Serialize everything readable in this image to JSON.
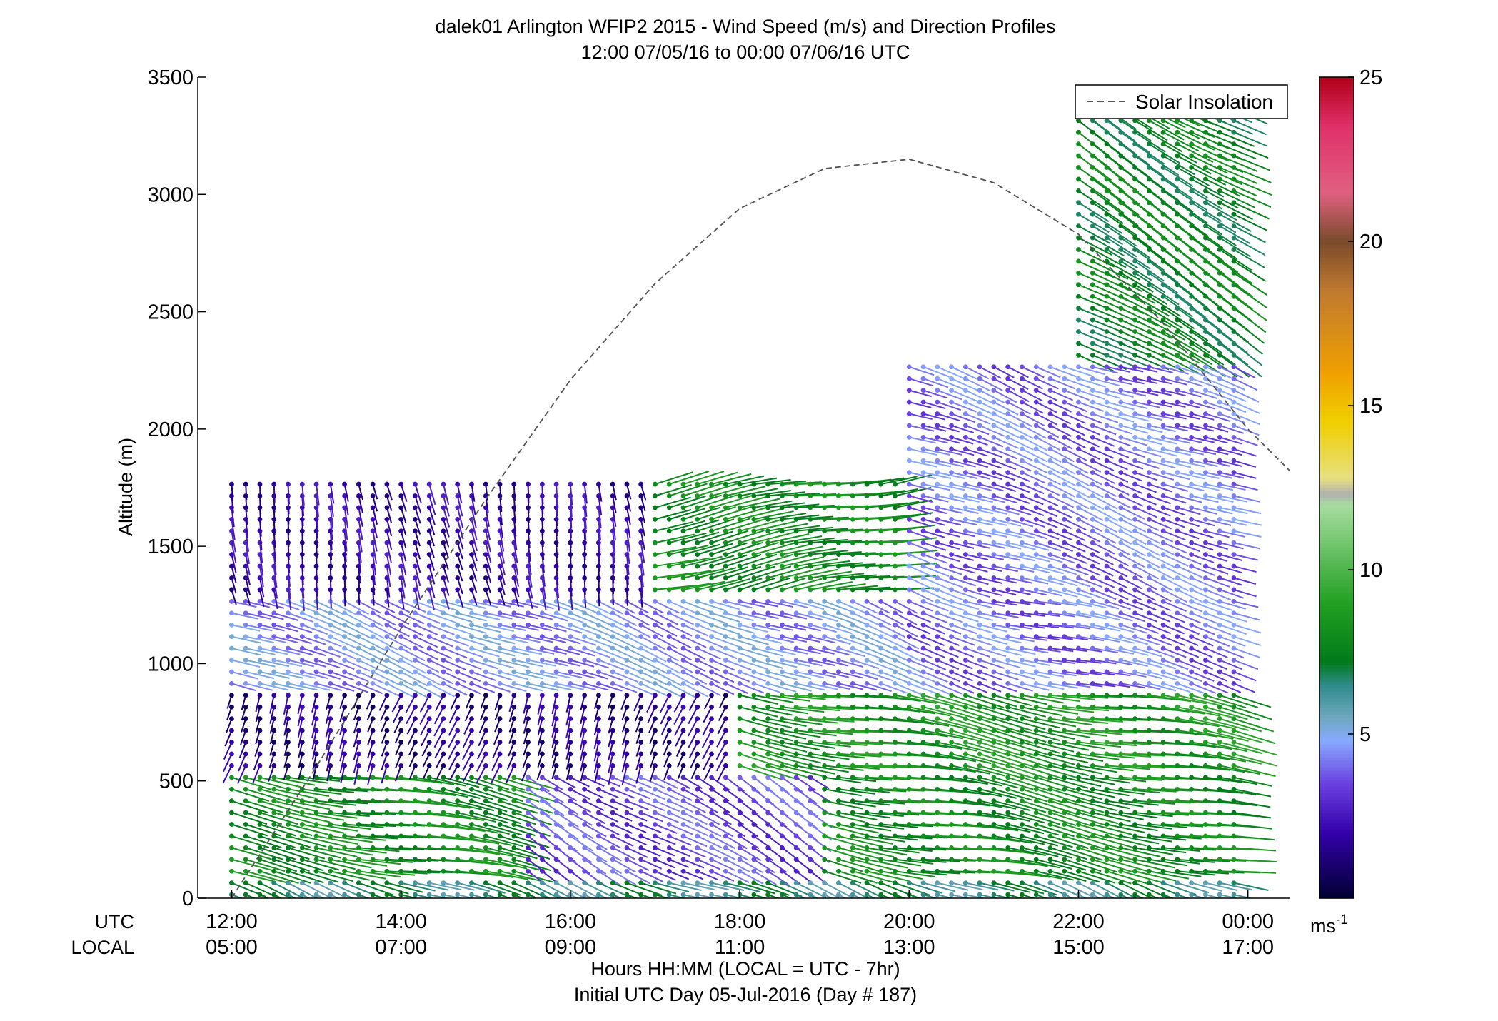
{
  "chart_data": {
    "type": "scatter",
    "title": "dalek01 Arlington WFIP2 2015 - Wind Speed (m/s) and Direction Profiles",
    "subtitle": "12:00 07/05/16 to 00:00 07/06/16  UTC",
    "ylabel": "Altitude (m)",
    "xlabel": "Hours HH:MM  (LOCAL = UTC - 7hr)",
    "xlabel2": "Initial UTC Day 05-Jul-2016 (Day # 187)",
    "xrow_utc_label": "UTC",
    "xrow_local_label": "LOCAL",
    "xlim_hours_utc": [
      11.6,
      24.5
    ],
    "ylim": [
      0,
      3500
    ],
    "yticks": [
      0,
      500,
      1000,
      1500,
      2000,
      2500,
      3000,
      3500
    ],
    "xtick_hours": [
      12,
      14,
      16,
      18,
      20,
      22,
      24
    ],
    "xticks_utc": [
      "12:00",
      "14:00",
      "16:00",
      "18:00",
      "20:00",
      "22:00",
      "00:00"
    ],
    "xticks_local": [
      "05:00",
      "07:00",
      "09:00",
      "11:00",
      "13:00",
      "15:00",
      "17:00"
    ],
    "grid": false,
    "legend": {
      "label": "Solar Insolation",
      "placement": "top-right",
      "style": "dashed gray line"
    },
    "colorbar": {
      "range": [
        0,
        25
      ],
      "ticks": [
        5,
        10,
        15,
        20,
        25
      ],
      "unit_label": "ms",
      "unit_exponent": "-1",
      "colormap_stops": [
        {
          "v": 0,
          "color": "#000033"
        },
        {
          "v": 2,
          "color": "#3300aa"
        },
        {
          "v": 3.5,
          "color": "#6a40e0"
        },
        {
          "v": 4.8,
          "color": "#88aaff"
        },
        {
          "v": 5.5,
          "color": "#6fa8c0"
        },
        {
          "v": 6.5,
          "color": "#2e8b8b"
        },
        {
          "v": 7.2,
          "color": "#007a1a"
        },
        {
          "v": 9,
          "color": "#22a022"
        },
        {
          "v": 12,
          "color": "#a8dda0"
        },
        {
          "v": 12.3,
          "color": "#b0b0b0"
        },
        {
          "v": 12.8,
          "color": "#e8e080"
        },
        {
          "v": 14.5,
          "color": "#f0d000"
        },
        {
          "v": 16,
          "color": "#f0a000"
        },
        {
          "v": 18.5,
          "color": "#c07a30"
        },
        {
          "v": 20,
          "color": "#7a4a2a"
        },
        {
          "v": 21.5,
          "color": "#e06080"
        },
        {
          "v": 23.5,
          "color": "#e0306a"
        },
        {
          "v": 25,
          "color": "#b00018"
        }
      ]
    },
    "solar_insolation_curve": {
      "hours_utc": [
        12.0,
        13.0,
        14.0,
        15.0,
        16.0,
        17.0,
        18.0,
        19.0,
        20.0,
        21.0,
        22.0,
        23.0,
        24.0,
        24.5
      ],
      "values_in_altitude_units": [
        0,
        560,
        1150,
        1700,
        2210,
        2620,
        2940,
        3110,
        3150,
        3050,
        2830,
        2450,
        2000,
        1820
      ]
    },
    "profile_times_utc": "12:00 to 23:50, one profile every ~10 minutes",
    "wind_speed_layers": [
      {
        "alt_range": [
          0,
          100
        ],
        "time_range": [
          "12:00",
          "00:00"
        ],
        "speed_ms": 6.5,
        "direction_deg": 110
      },
      {
        "alt_range": [
          100,
          550
        ],
        "time_range": [
          "12:00",
          "15:30"
        ],
        "speed_ms": 8.0,
        "direction_deg": 100
      },
      {
        "alt_range": [
          100,
          550
        ],
        "time_range": [
          "15:30",
          "19:00"
        ],
        "speed_ms": 3.5,
        "direction_deg": 120
      },
      {
        "alt_range": [
          100,
          550
        ],
        "time_range": [
          "19:00",
          "00:00"
        ],
        "speed_ms": 8.0,
        "direction_deg": 100
      },
      {
        "alt_range": [
          550,
          900
        ],
        "time_range": [
          "12:00",
          "18:00"
        ],
        "speed_ms": 1.5,
        "direction_deg": 200
      },
      {
        "alt_range": [
          550,
          900
        ],
        "time_range": [
          "18:00",
          "00:00"
        ],
        "speed_ms": 8.5,
        "direction_deg": 100
      },
      {
        "alt_range": [
          900,
          1300
        ],
        "time_range": [
          "12:00",
          "20:00"
        ],
        "speed_ms": 4.5,
        "direction_deg": 110
      },
      {
        "alt_range": [
          900,
          1300
        ],
        "time_range": [
          "20:00",
          "00:00"
        ],
        "speed_ms": 4.0,
        "direction_deg": 105
      },
      {
        "alt_range": [
          1300,
          1800
        ],
        "time_range": [
          "12:00",
          "17:00"
        ],
        "speed_ms": 2.0,
        "direction_deg": 170
      },
      {
        "alt_range": [
          1300,
          1800
        ],
        "time_range": [
          "17:00",
          "20:00"
        ],
        "speed_ms": 8.0,
        "direction_deg": 80
      },
      {
        "alt_range": [
          1300,
          2300
        ],
        "time_range": [
          "20:00",
          "00:00"
        ],
        "speed_ms": 4.0,
        "direction_deg": 110
      },
      {
        "alt_range": [
          2300,
          3450
        ],
        "time_range": [
          "22:00",
          "00:00"
        ],
        "speed_ms": 7.5,
        "direction_deg": 120
      }
    ]
  }
}
